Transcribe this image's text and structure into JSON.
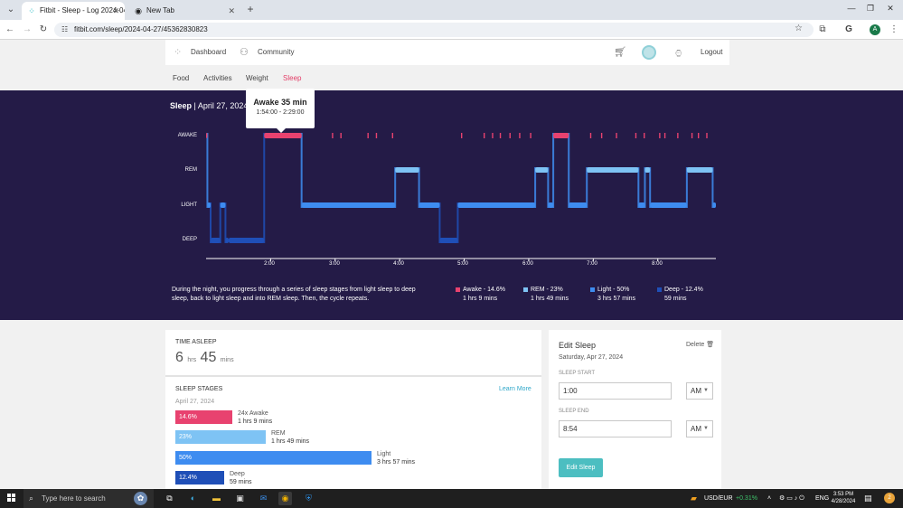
{
  "browser": {
    "tabs": [
      {
        "title": "Fitbit - Sleep - Log 2024-04-27",
        "active": true,
        "icon": "fitbit-dots-icon"
      },
      {
        "title": "New Tab",
        "active": false,
        "icon": "chrome-icon"
      }
    ],
    "url": "fitbit.com/sleep/2024-04-27/45362830823",
    "profile_initial": "A"
  },
  "header": {
    "dashboard": "Dashboard",
    "community": "Community",
    "logout": "Logout"
  },
  "subnav": {
    "food": "Food",
    "activities": "Activities",
    "weight": "Weight",
    "sleep": "Sleep"
  },
  "sleep_panel": {
    "title": "Sleep",
    "date": "April 27, 2024",
    "tooltip": {
      "title": "Awake 35 min",
      "range": "1:54:00 - 2:29:00"
    },
    "description": "During the night, you progress through a series of sleep stages from light sleep to deep sleep, back to light sleep and into REM sleep. Then, the cycle repeats.",
    "legend": [
      {
        "label": "Awake - 14.6%",
        "duration": "1 hrs 9 mins",
        "color": "#e8426f"
      },
      {
        "label": "REM - 23%",
        "duration": "1 hrs 49 mins",
        "color": "#7ec3f4"
      },
      {
        "label": "Light - 50%",
        "duration": "3 hrs 57 mins",
        "color": "#3e8cf0"
      },
      {
        "label": "Deep - 12.4%",
        "duration": "59 mins",
        "color": "#1f4fb7"
      }
    ]
  },
  "chart_data": {
    "type": "step",
    "y_categories": [
      "AWAKE",
      "REM",
      "LIGHT",
      "DEEP"
    ],
    "x_ticks": [
      "2:00",
      "3:00",
      "4:00",
      "5:00",
      "6:00",
      "7:00",
      "8:00"
    ],
    "x_unit": "hours after 1:00",
    "xlim": [
      0,
      7.9
    ],
    "segments": [
      {
        "start": 0.0,
        "end": 0.02,
        "stage": "AWAKE"
      },
      {
        "start": 0.02,
        "end": 0.07,
        "stage": "LIGHT"
      },
      {
        "start": 0.07,
        "end": 0.22,
        "stage": "DEEP"
      },
      {
        "start": 0.22,
        "end": 0.3,
        "stage": "LIGHT"
      },
      {
        "start": 0.3,
        "end": 0.35,
        "stage": "DEEP"
      },
      {
        "start": 0.35,
        "end": 0.9,
        "stage": "DEEP"
      },
      {
        "start": 0.9,
        "end": 1.48,
        "stage": "AWAKE"
      },
      {
        "start": 1.48,
        "end": 2.93,
        "stage": "LIGHT"
      },
      {
        "start": 2.93,
        "end": 3.3,
        "stage": "REM"
      },
      {
        "start": 3.3,
        "end": 3.62,
        "stage": "LIGHT"
      },
      {
        "start": 3.62,
        "end": 3.9,
        "stage": "DEEP"
      },
      {
        "start": 3.9,
        "end": 5.1,
        "stage": "LIGHT"
      },
      {
        "start": 5.1,
        "end": 5.3,
        "stage": "REM"
      },
      {
        "start": 5.3,
        "end": 5.38,
        "stage": "LIGHT"
      },
      {
        "start": 5.38,
        "end": 5.62,
        "stage": "AWAKE"
      },
      {
        "start": 5.62,
        "end": 5.9,
        "stage": "LIGHT"
      },
      {
        "start": 5.9,
        "end": 6.7,
        "stage": "REM"
      },
      {
        "start": 6.7,
        "end": 6.8,
        "stage": "LIGHT"
      },
      {
        "start": 6.8,
        "end": 6.88,
        "stage": "REM"
      },
      {
        "start": 6.88,
        "end": 7.45,
        "stage": "LIGHT"
      },
      {
        "start": 7.45,
        "end": 7.85,
        "stage": "REM"
      },
      {
        "start": 7.85,
        "end": 7.9,
        "stage": "LIGHT"
      }
    ],
    "awake_ticks": [
      1.95,
      2.08,
      2.5,
      2.63,
      2.88,
      3.95,
      4.3,
      4.43,
      4.55,
      4.7,
      4.85,
      5.02,
      5.95,
      6.12,
      6.35,
      6.65,
      6.78,
      7.02,
      7.1,
      7.3,
      7.52,
      7.62,
      7.75
    ],
    "colors": {
      "AWAKE": "#e8426f",
      "REM": "#7ec3f4",
      "LIGHT": "#3e8cf0",
      "DEEP": "#1f4fb7"
    }
  },
  "time_asleep": {
    "label": "TIME ASLEEP",
    "hours": "6",
    "hours_unit": "hrs",
    "minutes": "45",
    "minutes_unit": "mins"
  },
  "sleep_stages": {
    "label": "SLEEP STAGES",
    "learn_more": "Learn More",
    "date": "April 27, 2024",
    "bars": [
      {
        "percent": "14.6%",
        "value": 14.6,
        "name": "24x Awake",
        "duration": "1 hrs 9 mins",
        "color": "#e8426f"
      },
      {
        "percent": "23%",
        "value": 23,
        "name": "REM",
        "duration": "1 hrs 49 mins",
        "color": "#7ec3f4"
      },
      {
        "percent": "50%",
        "value": 50,
        "name": "Light",
        "duration": "3 hrs 57 mins",
        "color": "#3e8cf0"
      },
      {
        "percent": "12.4%",
        "value": 12.4,
        "name": "Deep",
        "duration": "59 mins",
        "color": "#1f4fb7"
      }
    ]
  },
  "edit_sleep": {
    "title": "Edit Sleep",
    "delete": "Delete",
    "date": "Saturday, Apr 27, 2024",
    "start_label": "SLEEP START",
    "start_value": "1:00",
    "start_ampm": "AM",
    "end_label": "SLEEP END",
    "end_value": "8:54",
    "end_ampm": "AM",
    "button": "Edit Sleep"
  },
  "taskbar": {
    "search_placeholder": "Type here to search",
    "ticker": "USD/EUR",
    "ticker_change": "+0.31%",
    "lang": "ENG",
    "time": "3:53 PM",
    "date": "4/28/2024",
    "notif_count": "2"
  }
}
